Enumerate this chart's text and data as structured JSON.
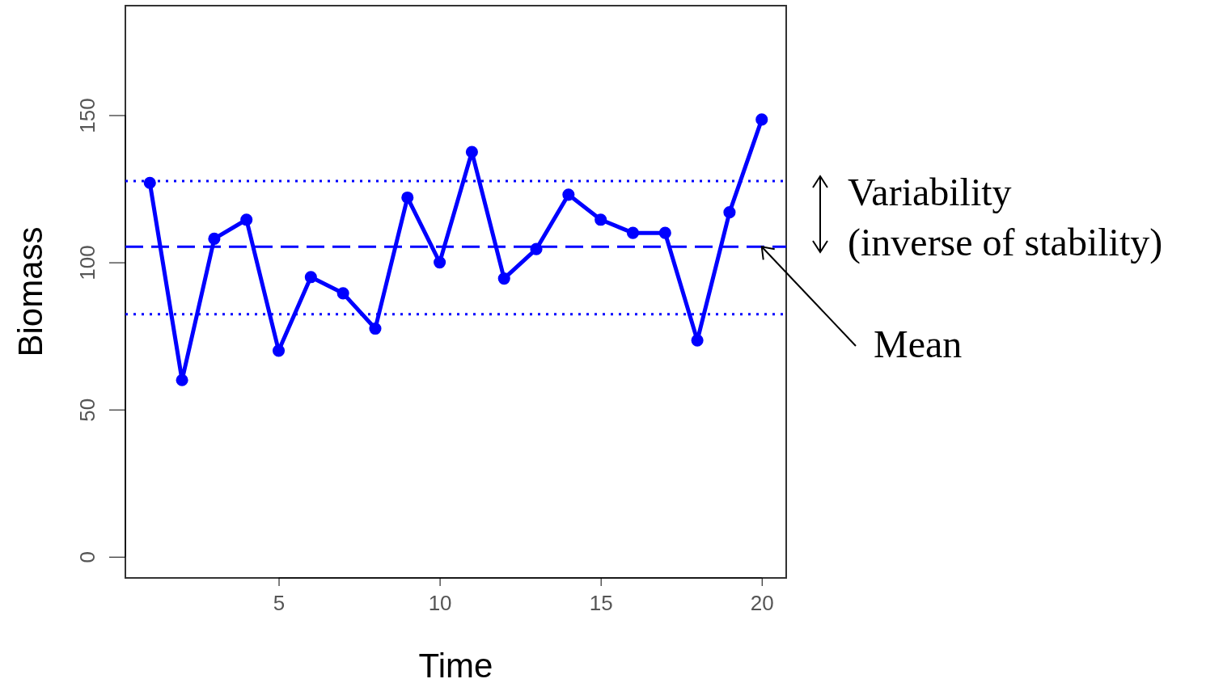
{
  "chart_data": {
    "type": "line",
    "xlabel": "Time",
    "ylabel": "Biomass",
    "x": [
      1,
      2,
      3,
      4,
      5,
      6,
      7,
      8,
      9,
      10,
      11,
      12,
      13,
      14,
      15,
      16,
      17,
      18,
      19,
      20
    ],
    "series": [
      {
        "color": "#0000ff",
        "values": [
          127,
          60,
          108,
          114.5,
          70,
          95,
          89.5,
          77.5,
          122,
          100,
          137.5,
          94.5,
          104.5,
          123,
          114.5,
          110,
          110,
          73.5,
          117,
          148.5
        ]
      }
    ],
    "xlim": [
      0.24,
      20.76
    ],
    "ylim": [
      -7.2,
      187.2
    ],
    "xticks": [
      5,
      10,
      15,
      20
    ],
    "yticks": [
      0,
      50,
      100,
      150
    ],
    "marker": "circle",
    "line_style": "solid",
    "grid": false,
    "ref_lines": [
      {
        "axis": "y",
        "value": 105.3,
        "line_style": "dashed",
        "color": "#0000ff"
      },
      {
        "axis": "y",
        "value": 127.6,
        "line_style": "dotted",
        "color": "#0000ff"
      },
      {
        "axis": "y",
        "value": 82.4,
        "line_style": "dotted",
        "color": "#0000ff"
      }
    ],
    "annotations": [
      "Variability\n(inverse of stability)",
      {
        "text": "Mean",
        "x": 20,
        "y": 105.3
      }
    ]
  }
}
